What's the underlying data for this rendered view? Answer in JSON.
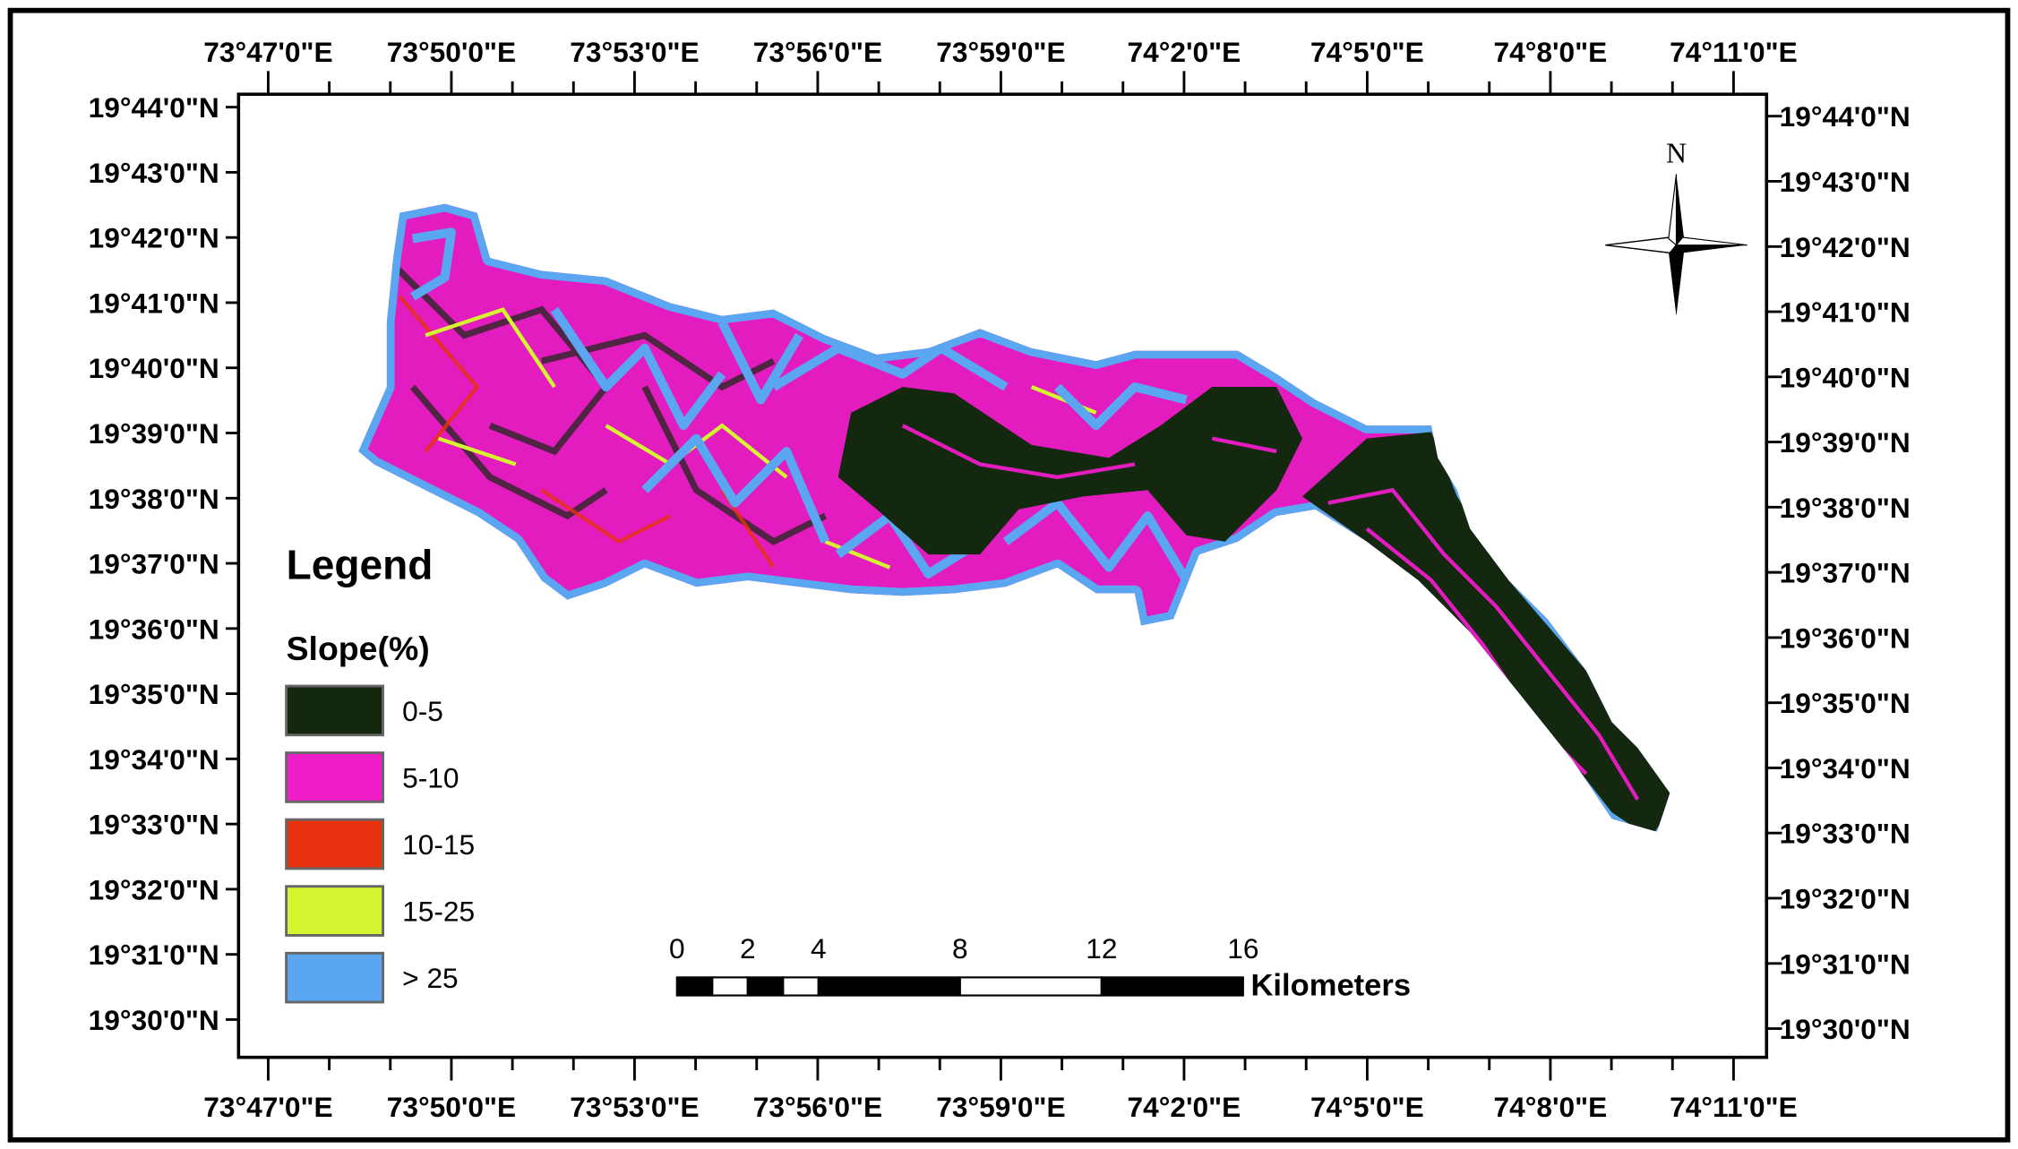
{
  "lon_labels": [
    "73°47'0\"E",
    "73°50'0\"E",
    "73°53'0\"E",
    "73°56'0\"E",
    "73°59'0\"E",
    "74°2'0\"E",
    "74°5'0\"E",
    "74°8'0\"E",
    "74°11'0\"E"
  ],
  "lat_labels": [
    "19°44'0\"N",
    "19°43'0\"N",
    "19°42'0\"N",
    "19°41'0\"N",
    "19°40'0\"N",
    "19°39'0\"N",
    "19°38'0\"N",
    "19°37'0\"N",
    "19°36'0\"N",
    "19°35'0\"N",
    "19°34'0\"N",
    "19°33'0\"N",
    "19°32'0\"N",
    "19°31'0\"N",
    "19°30'0\"N"
  ],
  "north": "N",
  "legend": {
    "title": "Legend",
    "subtitle": "Slope(%)",
    "items": [
      {
        "label": "0-5",
        "color": "#13280f"
      },
      {
        "label": "5-10",
        "color": "#f01ec8"
      },
      {
        "label": "10-15",
        "color": "#e8320f"
      },
      {
        "label": "15-25",
        "color": "#d4f530"
      },
      {
        "label": "> 25",
        "color": "#5aa6f0"
      }
    ]
  },
  "scale_bar": {
    "ticks": [
      0,
      2,
      4,
      8,
      12,
      16
    ],
    "unit": "Kilometers"
  }
}
